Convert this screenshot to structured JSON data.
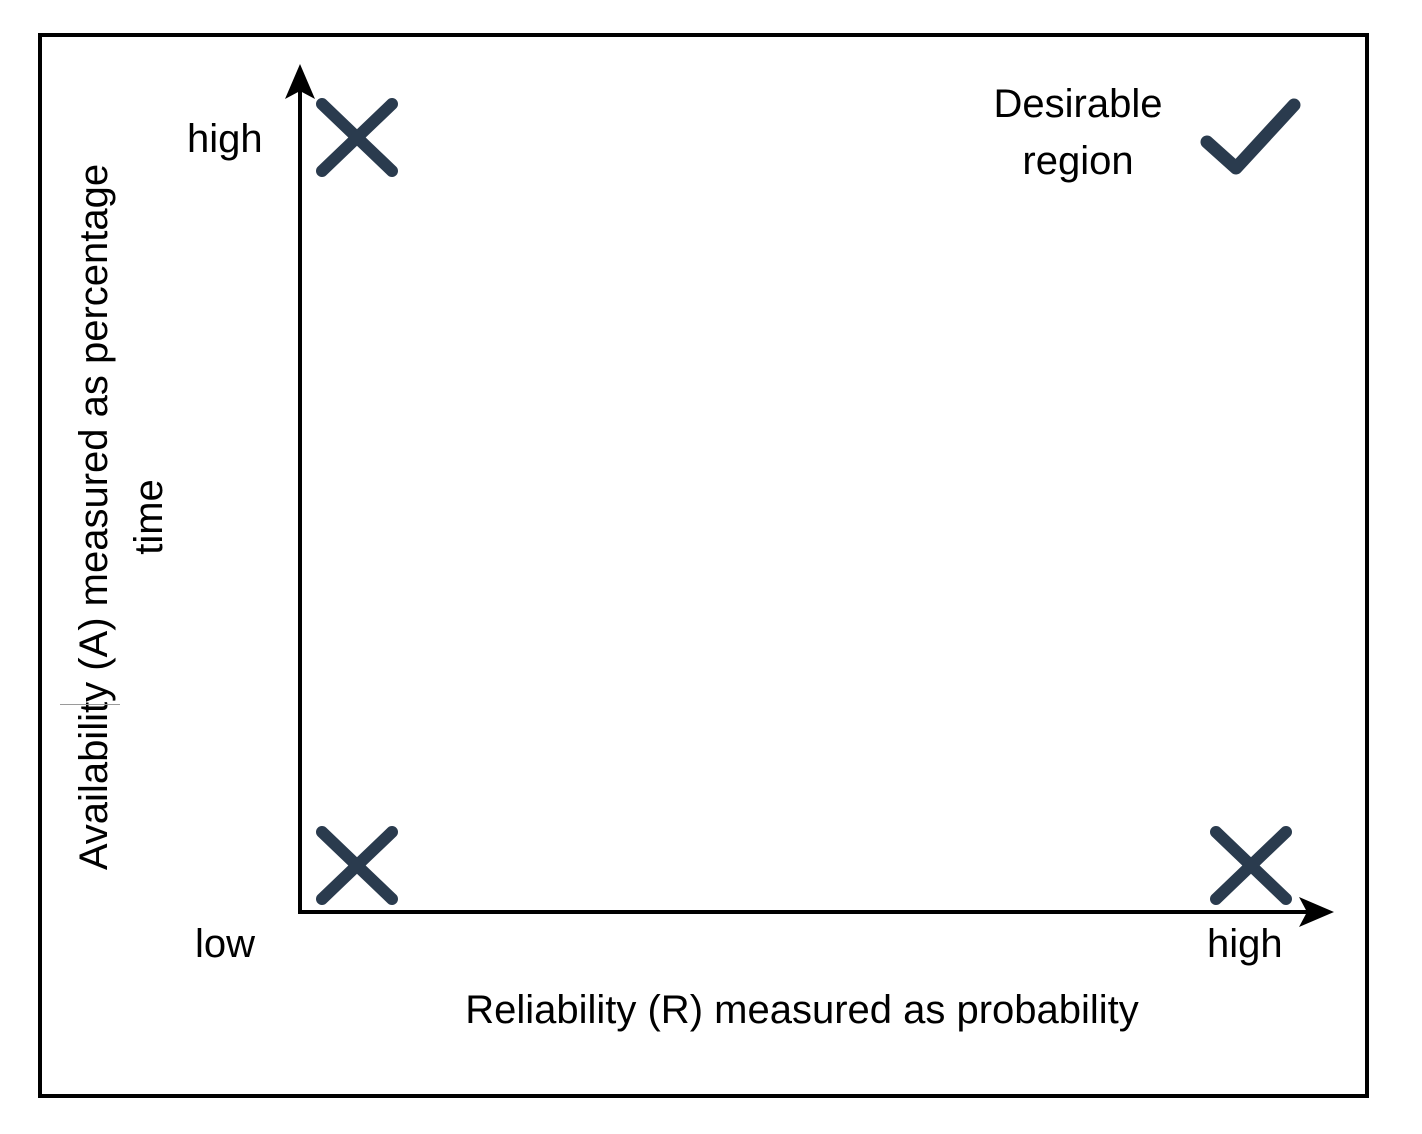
{
  "colors": {
    "frame": "#000000",
    "axes": "#000000",
    "marker": "#2a3b4e",
    "text": "#000000"
  },
  "axes": {
    "x_title": "Reliability (R) measured as probability",
    "y_title_line1": "Availability (A) measured as percentage",
    "y_title_line2": "time",
    "origin_label": "low",
    "x_high_label": "high",
    "y_high_label": "high"
  },
  "annotation": {
    "line1": "Desirable",
    "line2": "region"
  },
  "markers": [
    {
      "corner": "high availability, low reliability",
      "icon": "cross-icon"
    },
    {
      "corner": "low availability, low reliability",
      "icon": "cross-icon"
    },
    {
      "corner": "low availability, high reliability",
      "icon": "cross-icon"
    },
    {
      "corner": "high availability, high reliability",
      "icon": "check-icon"
    }
  ]
}
